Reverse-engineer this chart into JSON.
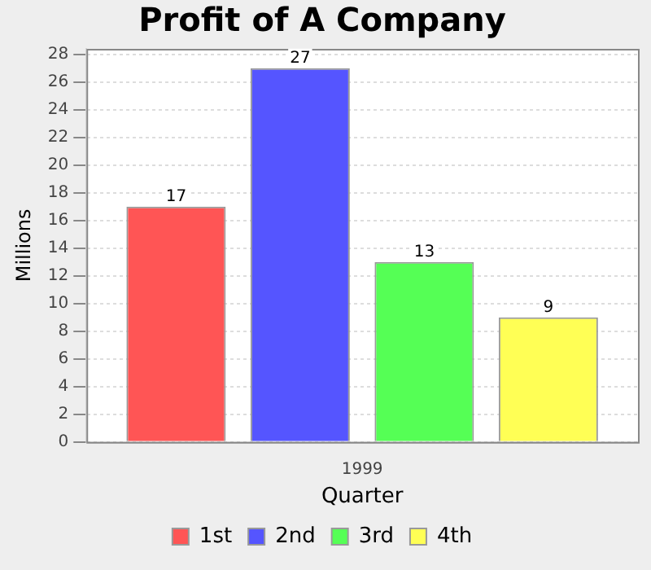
{
  "chart_data": {
    "type": "bar",
    "title": "Profit of A Company",
    "xlabel": "Quarter",
    "ylabel": "Millions",
    "categories": [
      "1999"
    ],
    "series": [
      {
        "name": "1st",
        "color": "#ff5555",
        "values": [
          17
        ]
      },
      {
        "name": "2nd",
        "color": "#5555ff",
        "values": [
          27
        ]
      },
      {
        "name": "3rd",
        "color": "#55ff55",
        "values": [
          13
        ]
      },
      {
        "name": "4th",
        "color": "#ffff55",
        "values": [
          9
        ]
      }
    ],
    "ylim": [
      0,
      28.4
    ],
    "yticks": [
      0,
      2,
      4,
      6,
      8,
      10,
      12,
      14,
      16,
      18,
      20,
      22,
      24,
      26,
      28
    ],
    "grid": "y",
    "legend": "bottom",
    "data_labels": true
  }
}
